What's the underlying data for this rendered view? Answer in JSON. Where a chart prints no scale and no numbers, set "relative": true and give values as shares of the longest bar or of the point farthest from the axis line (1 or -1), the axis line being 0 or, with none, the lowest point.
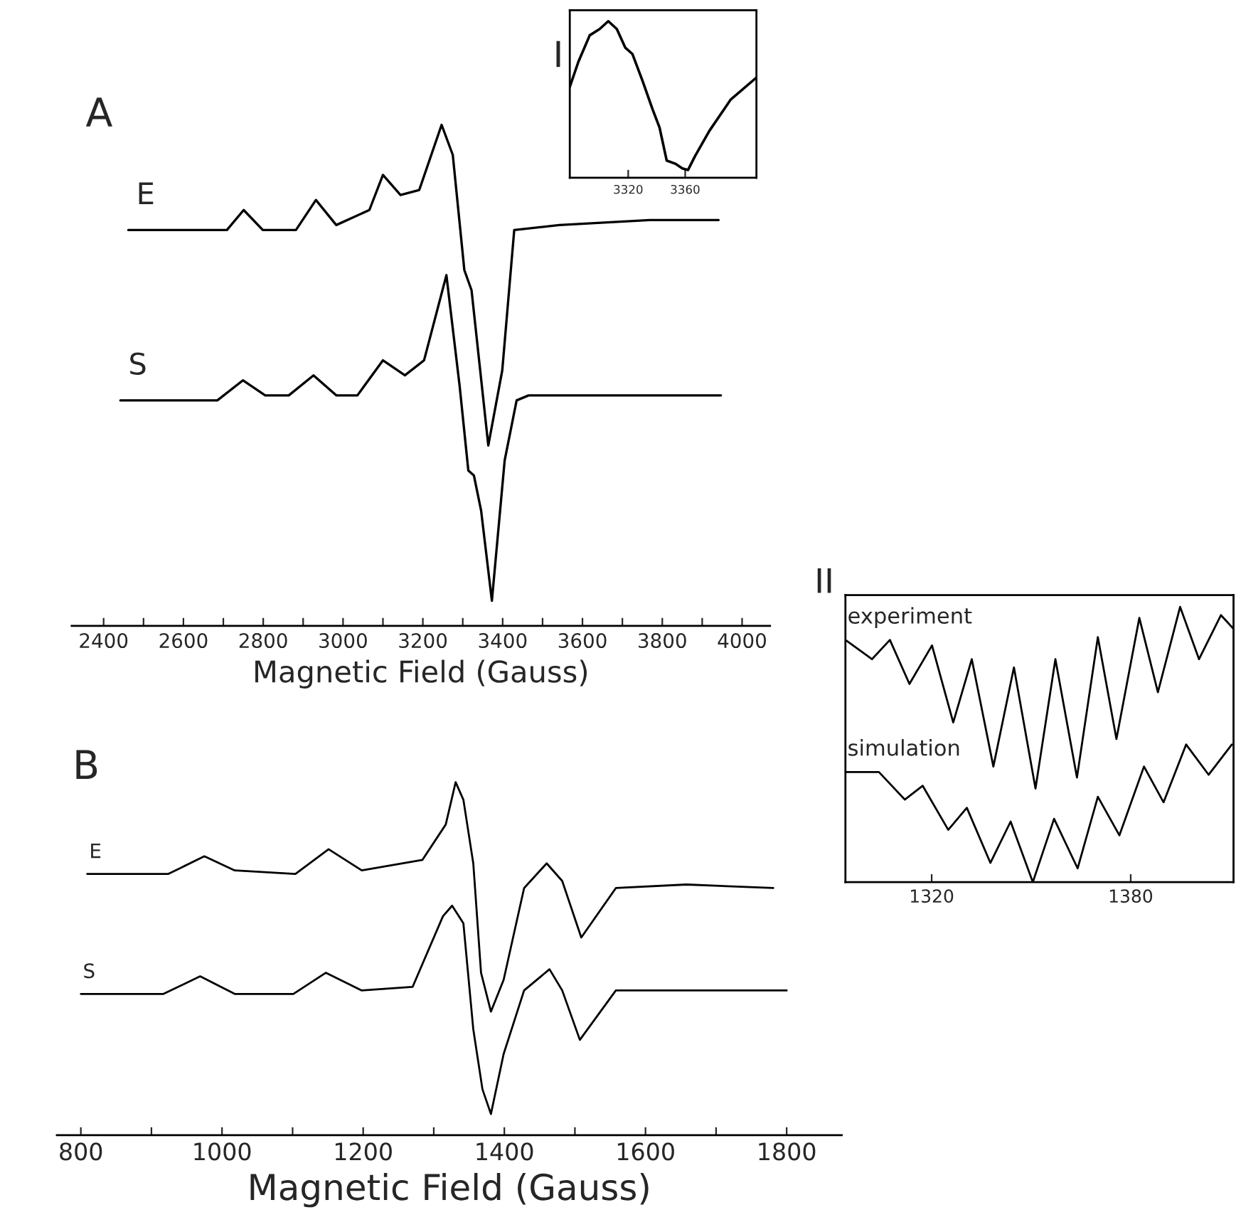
{
  "chart_data": [
    {
      "type": "line",
      "title": "A",
      "xlabel": "Magnetic Field (Gauss)",
      "relative": true,
      "tick_labels": "x",
      "xlim": [
        2320,
        4070
      ],
      "xticks": [
        2400,
        {
          "value": 2500,
          "label": null
        },
        2600,
        {
          "value": 2700,
          "label": null
        },
        2800,
        {
          "value": 2900,
          "label": null
        },
        3000,
        {
          "value": 3100,
          "label": null
        },
        3200,
        {
          "value": 3300,
          "label": null
        },
        3400,
        {
          "value": 3500,
          "label": null
        },
        3600,
        {
          "value": 3700,
          "label": null
        },
        3800,
        {
          "value": 3900,
          "label": null
        },
        4000
      ],
      "series": [
        {
          "name": "E",
          "color": "#000000",
          "x": [
            2462,
            2709,
            2751,
            2799,
            2882,
            2932,
            2983,
            3066,
            3100,
            3144,
            3191,
            3247,
            3275,
            3304,
            3322,
            3364,
            3399,
            3429,
            3542,
            3768,
            3941
          ],
          "values": [
            0.79,
            0.79,
            0.83,
            0.79,
            0.79,
            0.85,
            0.8,
            0.83,
            0.9,
            0.86,
            0.87,
            1.0,
            0.94,
            0.71,
            0.67,
            0.36,
            0.51,
            0.79,
            0.8,
            0.81,
            0.81
          ]
        },
        {
          "name": "S",
          "color": "#000000",
          "x": [
            2442,
            2685,
            2749,
            2805,
            2864,
            2926,
            2983,
            3036,
            3100,
            3155,
            3203,
            3259,
            3292,
            3314,
            3328,
            3346,
            3373,
            3405,
            3435,
            3465,
            3947
          ],
          "values": [
            0.45,
            0.45,
            0.49,
            0.46,
            0.46,
            0.5,
            0.46,
            0.46,
            0.53,
            0.5,
            0.53,
            0.7,
            0.48,
            0.31,
            0.3,
            0.23,
            0.05,
            0.33,
            0.45,
            0.46,
            0.46
          ]
        }
      ]
    },
    {
      "type": "line",
      "title": "I",
      "relative": true,
      "tick_labels": "x",
      "xlim": [
        3279,
        3410
      ],
      "xticks": [
        3320,
        3360
      ],
      "series": [
        {
          "color": "#000000",
          "x": [
            3279,
            3285,
            3293,
            3300,
            3306,
            3312,
            3318,
            3323,
            3330,
            3337,
            3342,
            3347,
            3353,
            3358,
            3362,
            3367,
            3377,
            3392,
            3410
          ],
          "values": [
            0.58,
            0.74,
            0.91,
            0.95,
            1.0,
            0.95,
            0.83,
            0.79,
            0.62,
            0.44,
            0.32,
            0.11,
            0.09,
            0.06,
            0.05,
            0.14,
            0.3,
            0.5,
            0.64
          ]
        }
      ]
    },
    {
      "type": "line",
      "title": "II",
      "relative": true,
      "tick_labels": "x",
      "xlim": [
        1294,
        1411
      ],
      "xticks": [
        1320,
        1380
      ],
      "series": [
        {
          "name": "experiment",
          "color": "#000000",
          "x": [
            1294,
            1302,
            1307.4,
            1313.3,
            1320.1,
            1326.5,
            1332.1,
            1338.6,
            1344.8,
            1351.3,
            1357.3,
            1363.8,
            1370.1,
            1375.7,
            1382.6,
            1388.2,
            1394.9,
            1400.6,
            1407.2,
            1411
          ],
          "values": [
            0.88,
            0.81,
            0.88,
            0.72,
            0.86,
            0.58,
            0.81,
            0.42,
            0.78,
            0.34,
            0.81,
            0.38,
            0.89,
            0.52,
            0.96,
            0.69,
            1.0,
            0.81,
            0.97,
            0.92
          ]
        },
        {
          "name": "simulation",
          "color": "#000000",
          "x": [
            1294,
            1304.1,
            1311.9,
            1317.3,
            1325,
            1330.6,
            1337.7,
            1343.8,
            1350.5,
            1356.9,
            1364,
            1370.1,
            1376.6,
            1384,
            1389.9,
            1396.7,
            1403.5,
            1410.5
          ],
          "values": [
            0.4,
            0.4,
            0.3,
            0.35,
            0.19,
            0.27,
            0.07,
            0.22,
            0.0,
            0.23,
            0.05,
            0.31,
            0.17,
            0.42,
            0.29,
            0.5,
            0.39,
            0.5
          ]
        }
      ]
    },
    {
      "type": "line",
      "title": "B",
      "xlabel": "Magnetic Field (Gauss)",
      "relative": true,
      "tick_labels": "x",
      "xlim": [
        766,
        1878
      ],
      "xticks": [
        800,
        {
          "value": 900,
          "label": null
        },
        1000,
        {
          "value": 1100,
          "label": null
        },
        1200,
        {
          "value": 1300,
          "label": null
        },
        1400,
        {
          "value": 1500,
          "label": null
        },
        1600,
        {
          "value": 1700,
          "label": null
        },
        1800
      ],
      "series": [
        {
          "name": "E",
          "color": "#000000",
          "x": [
            809,
            924,
            975,
            1018,
            1104,
            1151,
            1198,
            1284,
            1317,
            1331,
            1342,
            1356,
            1367,
            1381,
            1399,
            1428,
            1460,
            1482,
            1509,
            1558,
            1658,
            1781
          ],
          "values": [
            0.74,
            0.74,
            0.79,
            0.75,
            0.74,
            0.81,
            0.75,
            0.78,
            0.88,
            1.0,
            0.95,
            0.77,
            0.46,
            0.35,
            0.44,
            0.7,
            0.77,
            0.72,
            0.56,
            0.7,
            0.71,
            0.7
          ]
        },
        {
          "name": "S",
          "color": "#000000",
          "x": [
            800,
            917,
            969,
            1018,
            1101,
            1147,
            1198,
            1270,
            1313,
            1326,
            1342,
            1356,
            1369,
            1381,
            1399,
            1428,
            1464,
            1482,
            1507,
            1558,
            1800
          ],
          "values": [
            0.4,
            0.4,
            0.45,
            0.4,
            0.4,
            0.46,
            0.41,
            0.42,
            0.62,
            0.65,
            0.6,
            0.3,
            0.13,
            0.06,
            0.23,
            0.41,
            0.47,
            0.41,
            0.27,
            0.41,
            0.41
          ]
        }
      ]
    }
  ]
}
